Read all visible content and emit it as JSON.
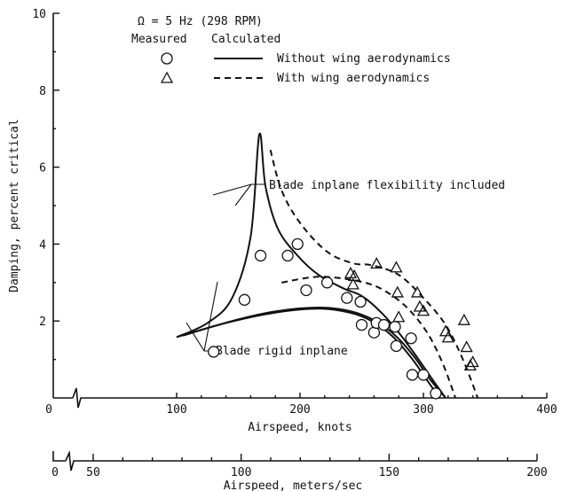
{
  "chart_data": {
    "type": "scatter",
    "title": "Ω = 5 Hz (298 RPM)",
    "xlabel": "Airspeed, knots",
    "ylabel": "Damping, percent critical",
    "x_ticks": [
      "0",
      "100",
      "200",
      "300",
      "400"
    ],
    "y_ticks": [
      "2",
      "4",
      "6",
      "8",
      "10"
    ],
    "xlim": [
      0,
      400
    ],
    "ylim": [
      0,
      10
    ],
    "secondary_x_axis": {
      "xlabel": "Airspeed, meters/sec",
      "ticks": [
        "0",
        "50",
        "100",
        "150",
        "200"
      ]
    },
    "legend": {
      "measured_header": "Measured",
      "calculated_header": "Calculated",
      "entries": [
        {
          "measured_marker": "circle",
          "line_style": "solid",
          "label": "Without wing aerodynamics"
        },
        {
          "measured_marker": "triangle",
          "line_style": "dashed",
          "label": "With wing aerodynamics"
        }
      ]
    },
    "annotations": [
      "Blade inplane flexibility included",
      "Blade rigid inplane"
    ],
    "series": [
      {
        "name": "Without wing aerodynamics",
        "kind": "measured",
        "marker": "circle",
        "points": [
          [
            130,
            1.2
          ],
          [
            155,
            2.55
          ],
          [
            168,
            3.7
          ],
          [
            190,
            3.7
          ],
          [
            198,
            4.0
          ],
          [
            205,
            2.8
          ],
          [
            222,
            3.0
          ],
          [
            238,
            2.6
          ],
          [
            249,
            2.5
          ],
          [
            250,
            1.9
          ],
          [
            260,
            1.7
          ],
          [
            262,
            1.95
          ],
          [
            268,
            1.9
          ],
          [
            277,
            1.85
          ],
          [
            278,
            1.35
          ],
          [
            290,
            1.55
          ],
          [
            291,
            0.6
          ],
          [
            300,
            0.6
          ],
          [
            310,
            0.12
          ]
        ]
      },
      {
        "name": "With wing aerodynamics",
        "kind": "measured",
        "marker": "triangle",
        "points": [
          [
            241,
            3.22
          ],
          [
            243,
            2.93
          ],
          [
            244,
            3.15
          ],
          [
            262,
            3.47
          ],
          [
            278,
            3.37
          ],
          [
            279,
            2.72
          ],
          [
            280,
            2.08
          ],
          [
            295,
            2.72
          ],
          [
            297,
            2.35
          ],
          [
            300,
            2.24
          ],
          [
            318,
            1.71
          ],
          [
            320,
            1.55
          ],
          [
            333,
            2.0
          ],
          [
            335,
            1.3
          ],
          [
            338,
            0.82
          ],
          [
            340,
            0.91
          ]
        ]
      },
      {
        "name": "Without wing aerodynamics",
        "kind": "calculated",
        "line_style": "solid",
        "curves": [
          [
            [
              100,
              1.58
            ],
            [
              125,
              1.95
            ],
            [
              145,
              2.6
            ],
            [
              160,
              4.2
            ],
            [
              167,
              6.85
            ],
            [
              172,
              5.5
            ],
            [
              182,
              4.4
            ],
            [
              198,
              3.7
            ],
            [
              215,
              3.2
            ],
            [
              235,
              2.85
            ],
            [
              250,
              2.65
            ],
            [
              265,
              2.25
            ],
            [
              280,
              1.7
            ],
            [
              295,
              1.05
            ],
            [
              308,
              0.45
            ],
            [
              318,
              0.0
            ]
          ],
          [
            [
              100,
              1.58
            ],
            [
              140,
              1.95
            ],
            [
              180,
              2.22
            ],
            [
              215,
              2.32
            ],
            [
              240,
              2.22
            ],
            [
              258,
              2.0
            ],
            [
              275,
              1.6
            ],
            [
              290,
              1.05
            ],
            [
              300,
              0.6
            ],
            [
              313,
              0.0
            ]
          ],
          [
            [
              105,
              1.62
            ],
            [
              145,
              2.0
            ],
            [
              180,
              2.25
            ],
            [
              215,
              2.35
            ],
            [
              240,
              2.26
            ],
            [
              260,
              2.02
            ],
            [
              278,
              1.6
            ],
            [
              293,
              1.05
            ],
            [
              305,
              0.5
            ],
            [
              318,
              0.0
            ]
          ]
        ]
      },
      {
        "name": "With wing aerodynamics",
        "kind": "calculated",
        "line_style": "dashed",
        "curves": [
          [
            [
              176,
              6.45
            ],
            [
              185,
              5.4
            ],
            [
              200,
              4.55
            ],
            [
              222,
              3.8
            ],
            [
              243,
              3.5
            ],
            [
              258,
              3.45
            ],
            [
              280,
              3.2
            ],
            [
              300,
              2.6
            ],
            [
              318,
              1.9
            ],
            [
              332,
              1.0
            ],
            [
              344,
              0.0
            ]
          ],
          [
            [
              185,
              3.0
            ],
            [
              215,
              3.15
            ],
            [
              245,
              3.05
            ],
            [
              265,
              2.85
            ],
            [
              285,
              2.4
            ],
            [
              302,
              1.75
            ],
            [
              315,
              0.95
            ],
            [
              326,
              0.0
            ]
          ]
        ]
      }
    ]
  }
}
